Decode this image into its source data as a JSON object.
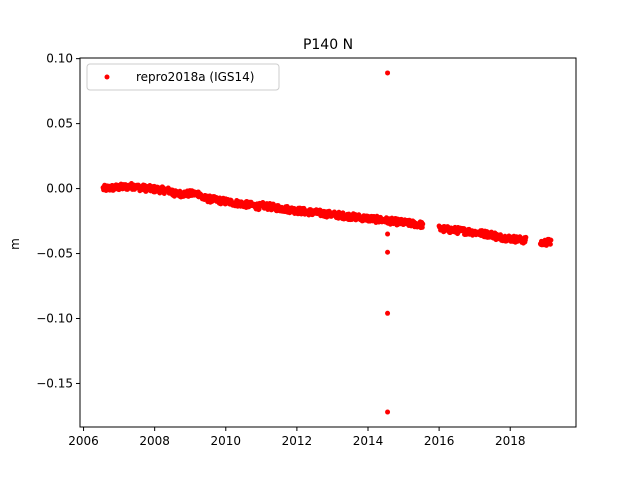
{
  "chart_data": {
    "type": "scatter",
    "title": "P140 N",
    "xlabel": "",
    "ylabel": "m",
    "xlim": [
      2005.9,
      2019.85
    ],
    "ylim": [
      -0.1835,
      0.1005
    ],
    "xticks": [
      2006,
      2008,
      2010,
      2012,
      2014,
      2016,
      2018
    ],
    "xtick_labels": [
      "2006",
      "2008",
      "2010",
      "2012",
      "2014",
      "2016",
      "2018"
    ],
    "yticks": [
      0.1,
      0.05,
      0.0,
      -0.05,
      -0.1,
      -0.15
    ],
    "ytick_labels": [
      "0.10",
      "0.05",
      "0.00",
      "−0.05",
      "−0.10",
      "−0.15"
    ],
    "grid": false,
    "legend_position": "top-left",
    "series": [
      {
        "name": "repro2018a (IGS14)",
        "color": "#ff0000",
        "marker": "dot",
        "trend_segments": [
          {
            "x": [
              2006.55,
              2007.5
            ],
            "y": [
              0.0,
              0.002
            ]
          },
          {
            "x": [
              2007.5,
              2008.5
            ],
            "y": [
              0.001,
              -0.002
            ]
          },
          {
            "x": [
              2008.5,
              2009.3
            ],
            "y": [
              -0.004,
              -0.004
            ]
          },
          {
            "x": [
              2009.3,
              2010.0
            ],
            "y": [
              -0.007,
              -0.01
            ]
          },
          {
            "x": [
              2010.0,
              2011.0
            ],
            "y": [
              -0.01,
              -0.014
            ]
          },
          {
            "x": [
              2011.0,
              2012.0
            ],
            "y": [
              -0.013,
              -0.017
            ]
          },
          {
            "x": [
              2012.0,
              2013.0
            ],
            "y": [
              -0.017,
              -0.02
            ]
          },
          {
            "x": [
              2013.0,
              2014.0
            ],
            "y": [
              -0.02,
              -0.023
            ]
          },
          {
            "x": [
              2014.0,
              2015.55
            ],
            "y": [
              -0.023,
              -0.028
            ]
          },
          {
            "x": [
              2016.0,
              2016.8
            ],
            "y": [
              -0.031,
              -0.033
            ]
          },
          {
            "x": [
              2016.8,
              2017.6
            ],
            "y": [
              -0.033,
              -0.036
            ]
          },
          {
            "x": [
              2017.6,
              2018.45
            ],
            "y": [
              -0.037,
              -0.04
            ]
          },
          {
            "x": [
              2018.85,
              2019.15
            ],
            "y": [
              -0.042,
              -0.041
            ]
          }
        ],
        "outliers": [
          {
            "x": 2014.55,
            "y": 0.089
          },
          {
            "x": 2014.55,
            "y": -0.035
          },
          {
            "x": 2014.55,
            "y": -0.049
          },
          {
            "x": 2014.55,
            "y": -0.096
          },
          {
            "x": 2014.55,
            "y": -0.172
          }
        ]
      }
    ]
  }
}
